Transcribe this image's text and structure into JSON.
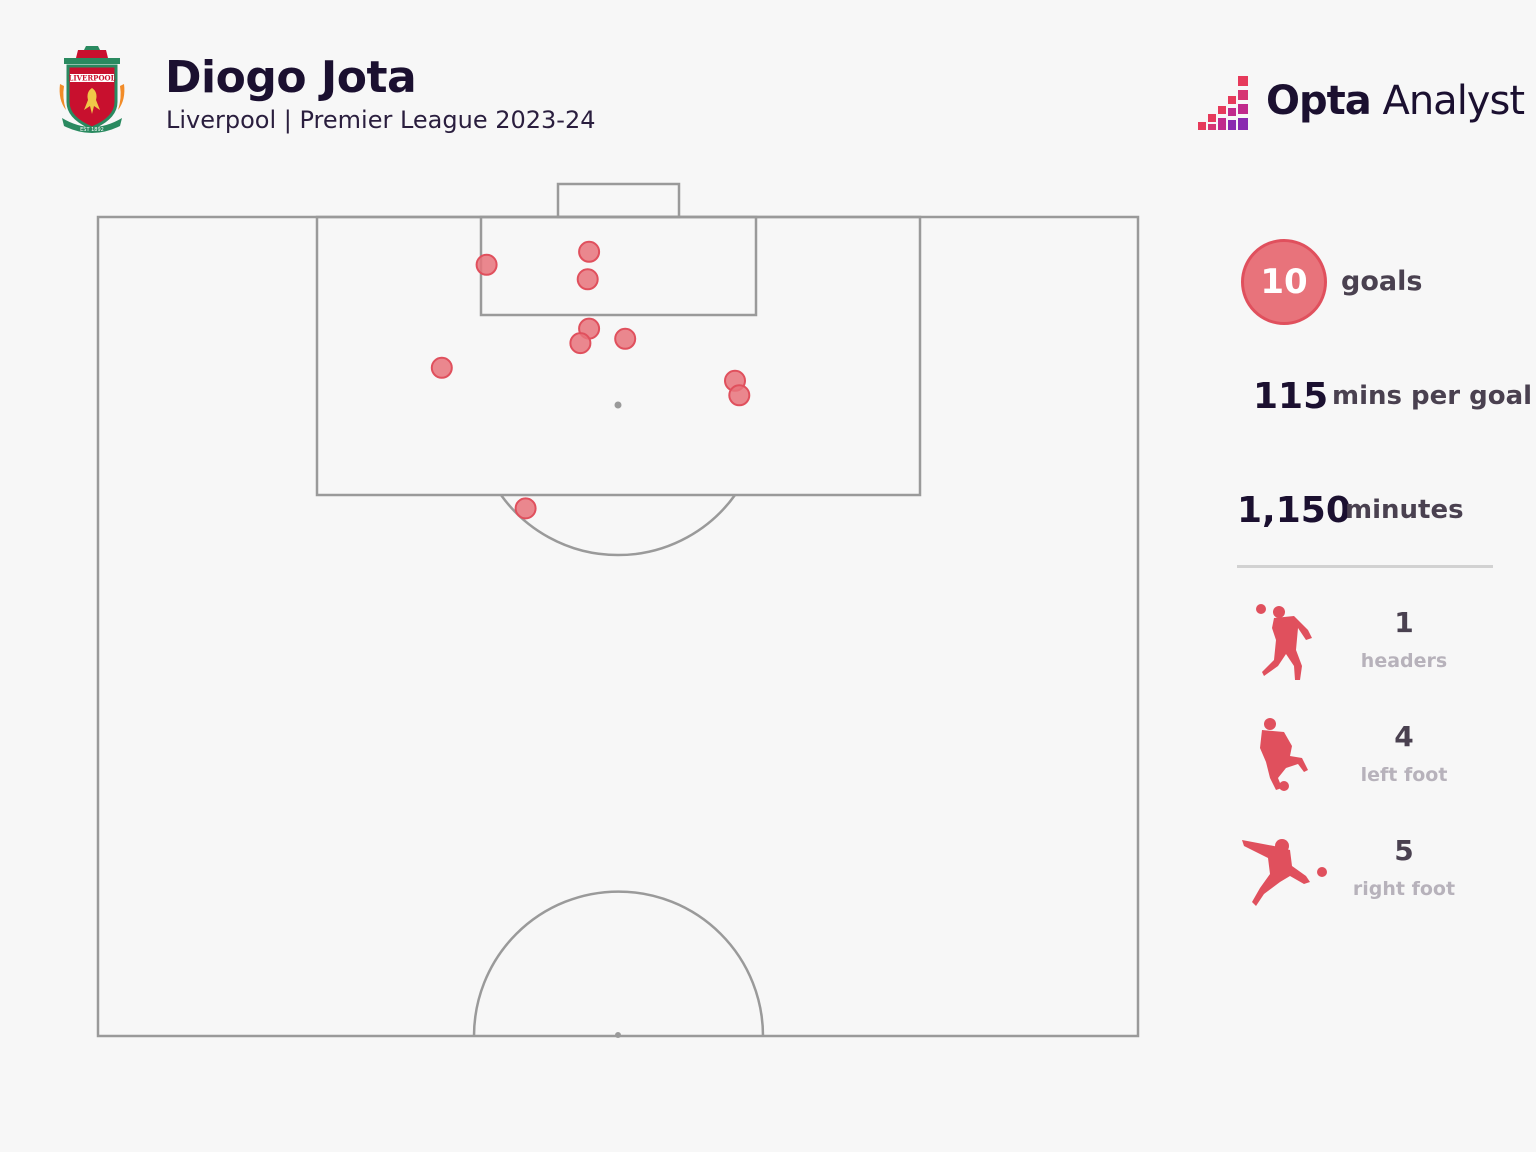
{
  "header": {
    "player_name": "Diogo Jota",
    "subtitle": "Liverpool | Premier League 2023-24",
    "crest_text": "LIVERPOOL FOOTBALL CLUB · YOU'LL NEVER WALK ALONE · EST 1892"
  },
  "brand": {
    "name_bold": "Opta",
    "name_light": " Analyst",
    "colors": [
      "#e63a5b",
      "#c02a8c",
      "#8a2ab0"
    ]
  },
  "stats": {
    "goals_value": "10",
    "goals_label": "goals",
    "mins_per_goal_value": "115",
    "mins_per_goal_label": "mins per goal",
    "minutes_value": "1,150",
    "minutes_label": "minutes"
  },
  "body_parts": [
    {
      "value": "1",
      "label": "headers",
      "icon": "header-player-icon"
    },
    {
      "value": "4",
      "label": "left foot",
      "icon": "left-foot-player-icon"
    },
    {
      "value": "5",
      "label": "right foot",
      "icon": "right-foot-player-icon"
    }
  ],
  "colors": {
    "goal_fill": "#e8737b",
    "goal_stroke": "#e0505d",
    "pitch_line": "#9a9a9a"
  },
  "chart_data": {
    "type": "scatter",
    "title": "",
    "xlabel": "",
    "ylabel": "",
    "x_axis": "width across pitch (yards, 0 = left touchline)",
    "y_axis": "distance from goal line (yards)",
    "xlim": [
      0,
      72
    ],
    "ylim": [
      0,
      56.5
    ],
    "grid": false,
    "series": [
      {
        "values": [
          {
            "x": 26.9,
            "y": 3.3
          },
          {
            "x": 34.0,
            "y": 2.4
          },
          {
            "x": 33.9,
            "y": 4.3
          },
          {
            "x": 34.0,
            "y": 7.7
          },
          {
            "x": 33.4,
            "y": 8.7
          },
          {
            "x": 36.5,
            "y": 8.4
          },
          {
            "x": 23.8,
            "y": 10.4
          },
          {
            "x": 44.1,
            "y": 11.3
          },
          {
            "x": 44.4,
            "y": 12.3
          },
          {
            "x": 29.6,
            "y": 20.1
          }
        ]
      }
    ]
  }
}
